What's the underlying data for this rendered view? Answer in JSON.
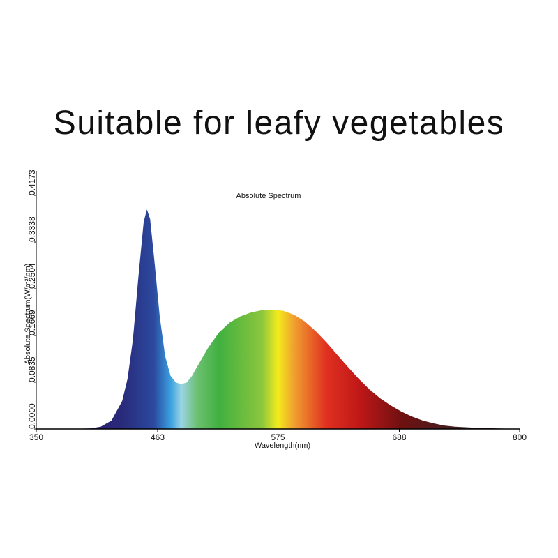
{
  "heading": "Suitable for leafy vegetables",
  "chart_data": {
    "type": "area",
    "title": "Absolute Spectrum",
    "x_label": "Wavelength(nm)",
    "y_label": "Absolute Spectrum(W/m²/nm)",
    "x": [
      380,
      400,
      410,
      420,
      430,
      435,
      440,
      445,
      450,
      453,
      456,
      460,
      465,
      470,
      475,
      480,
      485,
      490,
      495,
      500,
      510,
      520,
      530,
      540,
      550,
      560,
      570,
      580,
      590,
      600,
      610,
      620,
      630,
      640,
      650,
      660,
      670,
      680,
      690,
      700,
      710,
      720,
      730,
      740,
      760,
      780,
      800
    ],
    "values": [
      0,
      0.001,
      0.004,
      0.015,
      0.05,
      0.09,
      0.16,
      0.27,
      0.37,
      0.392,
      0.375,
      0.3,
      0.2,
      0.13,
      0.095,
      0.083,
      0.08,
      0.083,
      0.095,
      0.112,
      0.145,
      0.172,
      0.19,
      0.201,
      0.208,
      0.212,
      0.213,
      0.211,
      0.204,
      0.192,
      0.175,
      0.155,
      0.133,
      0.111,
      0.09,
      0.071,
      0.055,
      0.042,
      0.031,
      0.022,
      0.015,
      0.01,
      0.006,
      0.004,
      0.002,
      0.001,
      0
    ],
    "xlim": [
      350,
      800
    ],
    "xticks": [
      350,
      463,
      575,
      688,
      800
    ],
    "ylim": [
      0,
      0.4173
    ],
    "yticks": [
      {
        "value": 0,
        "label": "0.0000"
      },
      0.0835,
      0.1669,
      0.2504,
      0.3338,
      0.4173
    ],
    "grid": false
  }
}
